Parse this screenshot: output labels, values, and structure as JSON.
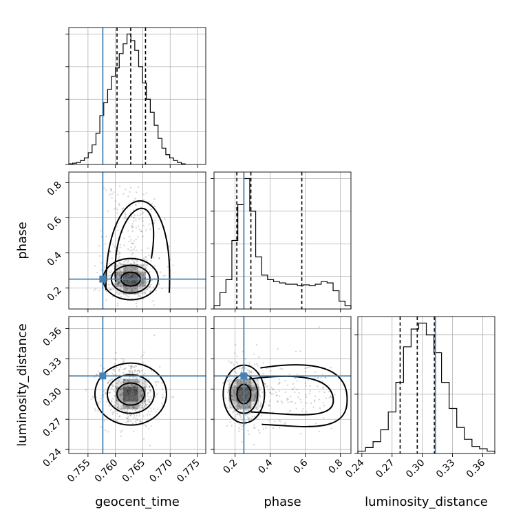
{
  "colors": {
    "truth": "#4682b4"
  },
  "chart_data": {
    "type": "corner",
    "parameters": [
      "geocent_time",
      "phase",
      "luminosity_distance"
    ],
    "truths": {
      "geocent_time": 0.7577,
      "phase": 0.25,
      "luminosity_distance": 0.313
    },
    "quantiles": {
      "geocent_time": [
        0.7603,
        0.7628,
        0.7655
      ],
      "phase": [
        0.21,
        0.29,
        0.58
      ],
      "luminosity_distance": [
        0.278,
        0.295,
        0.312
      ]
    },
    "ranges": {
      "geocent_time": [
        0.7515,
        0.7765
      ],
      "phase": [
        0.08,
        0.86
      ],
      "luminosity_distance": [
        0.236,
        0.372
      ]
    },
    "axis_labels": {
      "geocent_time": "geocent_time",
      "phase": "phase",
      "luminosity_distance": "luminosity_distance"
    },
    "ticks": {
      "geocent_time": {
        "values": [
          0.755,
          0.76,
          0.765,
          0.77,
          0.775
        ],
        "labels": [
          "0.755",
          "0.760",
          "0.765",
          "0.770",
          "0.775"
        ]
      },
      "phase": {
        "values": [
          0.2,
          0.4,
          0.6,
          0.8
        ],
        "labels": [
          "0.2",
          "0.4",
          "0.6",
          "0.8"
        ]
      },
      "luminosity_distance": {
        "values": [
          0.24,
          0.27,
          0.3,
          0.33,
          0.36
        ],
        "labels": [
          "0.24",
          "0.27",
          "0.30",
          "0.33",
          "0.36"
        ]
      }
    },
    "histograms": {
      "geocent_time": {
        "edges": [
          0.7515,
          0.77275
        ],
        "counts": [
          1,
          2,
          3,
          6,
          10,
          18,
          30,
          48,
          75,
          95,
          115,
          135,
          148,
          170,
          185,
          200,
          190,
          175,
          150,
          125,
          100,
          80,
          60,
          40,
          25,
          15,
          10,
          6,
          3,
          1
        ]
      },
      "phase": {
        "edges": [
          0.08,
          0.86
        ],
        "counts": [
          5,
          25,
          45,
          105,
          160,
          200,
          150,
          80,
          52,
          45,
          42,
          40,
          38,
          38,
          36,
          37,
          36,
          38,
          42,
          40,
          28,
          12,
          5
        ]
      },
      "luminosity_distance": {
        "edges": [
          0.236,
          0.372
        ],
        "counts": [
          2,
          5,
          10,
          20,
          35,
          60,
          90,
          105,
          110,
          100,
          85,
          60,
          38,
          22,
          12,
          6,
          4,
          2
        ]
      }
    },
    "grid": true
  }
}
